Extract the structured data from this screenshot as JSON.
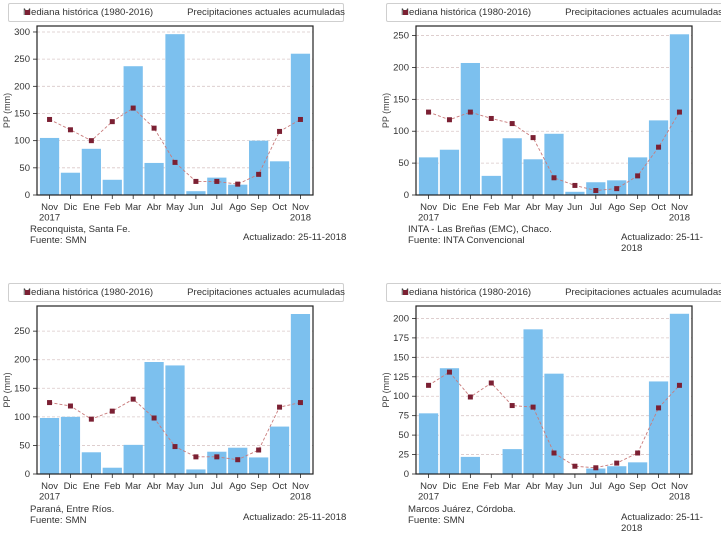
{
  "legend": {
    "median_label": "Mediana histórica (1980-2016)",
    "bars_label": "Precipitaciones actuales acumuladas"
  },
  "colors": {
    "bar": "#7cc0ee",
    "median_marker": "#7b2033",
    "median_line": "#c97b7b",
    "grid": "#d9c8c8",
    "axis": "#222222"
  },
  "chart_data": [
    {
      "type": "bar",
      "title": "",
      "station": "Reconquista, Santa Fe.",
      "source": "Fuente: SMN",
      "updated": "Actualizado: 25-11-2018",
      "xlabel": "",
      "ylabel": "PP (mm)",
      "categories": [
        "Nov\n2017",
        "Dic",
        "Ene",
        "Feb",
        "Mar",
        "Abr",
        "May",
        "Jun",
        "Jul",
        "Ago",
        "Sep",
        "Oct",
        "Nov\n2018"
      ],
      "ylim": [
        0,
        311
      ],
      "yticks": [
        0,
        50,
        100,
        150,
        200,
        250,
        300
      ],
      "grid": true,
      "legend_position": "top",
      "series": [
        {
          "name": "Precipitaciones actuales acumuladas",
          "type": "bar",
          "values": [
            105,
            41,
            85,
            28,
            237,
            59,
            296,
            7,
            32,
            19,
            100,
            62,
            260
          ]
        },
        {
          "name": "Mediana histórica (1980-2016)",
          "type": "line",
          "values": [
            139,
            120,
            100,
            135,
            160,
            123,
            60,
            25,
            25,
            20,
            38,
            117,
            139
          ]
        }
      ]
    },
    {
      "type": "bar",
      "title": "",
      "station": "INTA - Las Breñas (EMC), Chaco.",
      "source": "Fuente: INTA Convencional",
      "updated": "Actualizado: 25-11-2018",
      "xlabel": "",
      "ylabel": "PP (mm)",
      "categories": [
        "Nov\n2017",
        "Dic",
        "Ene",
        "Feb",
        "Mar",
        "Abr",
        "May",
        "Jun",
        "Jul",
        "Ago",
        "Sep",
        "Oct",
        "Nov\n2018"
      ],
      "ylim": [
        0,
        265
      ],
      "yticks": [
        0,
        50,
        100,
        150,
        200,
        250
      ],
      "grid": true,
      "legend_position": "top",
      "series": [
        {
          "name": "Precipitaciones actuales acumuladas",
          "type": "bar",
          "values": [
            59,
            71,
            207,
            30,
            89,
            56,
            96,
            5,
            20,
            23,
            59,
            117,
            252
          ]
        },
        {
          "name": "Mediana histórica (1980-2016)",
          "type": "line",
          "values": [
            130,
            118,
            130,
            120,
            112,
            90,
            27,
            15,
            7,
            10,
            30,
            75,
            130
          ]
        }
      ]
    },
    {
      "type": "bar",
      "title": "",
      "station": "Paraná, Entre Ríos.",
      "source": "Fuente: SMN",
      "updated": "Actualizado: 25-11-2018",
      "xlabel": "",
      "ylabel": "PP (mm)",
      "categories": [
        "Nov\n2017",
        "Dic",
        "Ene",
        "Feb",
        "Mar",
        "Abr",
        "May",
        "Jun",
        "Jul",
        "Ago",
        "Sep",
        "Oct",
        "Nov\n2018"
      ],
      "ylim": [
        0,
        294
      ],
      "yticks": [
        0,
        50,
        100,
        150,
        200,
        250
      ],
      "grid": true,
      "legend_position": "top",
      "series": [
        {
          "name": "Precipitaciones actuales acumuladas",
          "type": "bar",
          "values": [
            98,
            100,
            38,
            11,
            51,
            196,
            190,
            8,
            39,
            46,
            29,
            83,
            280
          ]
        },
        {
          "name": "Mediana histórica (1980-2016)",
          "type": "line",
          "values": [
            125,
            119,
            96,
            110,
            131,
            98,
            48,
            30,
            30,
            25,
            42,
            117,
            125
          ]
        }
      ]
    },
    {
      "type": "bar",
      "title": "",
      "station": "Marcos Juárez, Córdoba.",
      "source": "Fuente: SMN",
      "updated": "Actualizado: 25-11-2018",
      "xlabel": "",
      "ylabel": "PP (mm)",
      "categories": [
        "Nov\n2017",
        "Dic",
        "Ene",
        "Feb",
        "Mar",
        "Abr",
        "May",
        "Jun",
        "Jul",
        "Ago",
        "Sep",
        "Oct",
        "Nov\n2018"
      ],
      "ylim": [
        0,
        216
      ],
      "yticks": [
        0,
        25,
        50,
        75,
        100,
        125,
        150,
        175,
        200
      ],
      "grid": true,
      "legend_position": "top",
      "series": [
        {
          "name": "Precipitaciones actuales acumuladas",
          "type": "bar",
          "values": [
            78,
            136,
            22,
            0,
            32,
            186,
            129,
            0,
            7,
            10,
            15,
            119,
            206
          ]
        },
        {
          "name": "Mediana histórica (1980-2016)",
          "type": "line",
          "values": [
            114,
            131,
            99,
            117,
            88,
            86,
            27,
            10,
            8,
            14,
            27,
            85,
            114
          ]
        }
      ]
    }
  ]
}
